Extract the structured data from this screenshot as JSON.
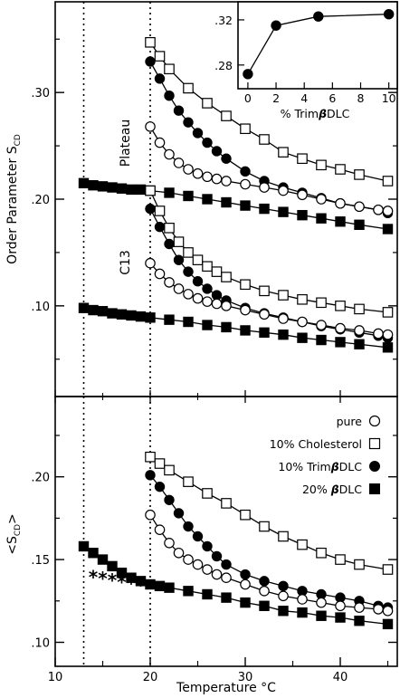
{
  "chart_data": [
    {
      "type": "line",
      "panel": "top",
      "ylabel": "Order Parameter S",
      "ylabel_sub": "CD",
      "xlim": [
        10,
        46
      ],
      "ylim": [
        0.015,
        0.385
      ],
      "x_ticks": [
        10,
        20,
        30,
        40
      ],
      "y_ticks": [
        0.1,
        0.2,
        0.3
      ],
      "y_tick_labels": [
        ".10",
        ".20",
        ".30"
      ],
      "annotations": [
        "Plateau",
        "C13"
      ],
      "vlines": [
        13,
        20
      ],
      "series": [
        {
          "group": "Plateau",
          "marker": "open-square",
          "x": [
            20,
            21,
            22,
            24,
            26,
            28,
            30,
            32,
            34,
            36,
            38,
            40,
            42,
            45
          ],
          "y": [
            0.347,
            0.334,
            0.322,
            0.304,
            0.29,
            0.278,
            0.266,
            0.256,
            0.244,
            0.238,
            0.232,
            0.228,
            0.223,
            0.217
          ]
        },
        {
          "group": "Plateau",
          "marker": "filled-circle",
          "x": [
            20,
            21,
            22,
            23,
            24,
            25,
            26,
            27,
            28,
            30,
            32,
            34,
            36,
            38,
            40,
            42,
            44,
            45
          ],
          "y": [
            0.329,
            0.313,
            0.297,
            0.283,
            0.272,
            0.262,
            0.253,
            0.245,
            0.238,
            0.226,
            0.217,
            0.211,
            0.206,
            0.201,
            0.196,
            0.193,
            0.19,
            0.187
          ]
        },
        {
          "group": "Plateau",
          "marker": "open-circle",
          "x": [
            20,
            21,
            22,
            23,
            24,
            25,
            26,
            27,
            28,
            30,
            32,
            34,
            36,
            38,
            40,
            42,
            44,
            45
          ],
          "y": [
            0.268,
            0.253,
            0.242,
            0.234,
            0.228,
            0.224,
            0.221,
            0.219,
            0.217,
            0.214,
            0.211,
            0.208,
            0.204,
            0.2,
            0.196,
            0.193,
            0.19,
            0.189
          ]
        },
        {
          "group": "Plateau",
          "marker": "filled-square",
          "x": [
            13,
            14,
            15,
            16,
            17,
            18,
            19,
            20,
            22,
            24,
            26,
            28,
            30,
            32,
            34,
            36,
            38,
            40,
            42,
            45
          ],
          "y": [
            0.215,
            0.213,
            0.212,
            0.211,
            0.21,
            0.209,
            0.209,
            0.208,
            0.206,
            0.203,
            0.2,
            0.197,
            0.194,
            0.191,
            0.188,
            0.185,
            0.182,
            0.179,
            0.176,
            0.172
          ]
        },
        {
          "group": "C13",
          "marker": "open-square",
          "x": [
            20,
            21,
            22,
            23,
            24,
            25,
            26,
            27,
            28,
            30,
            32,
            34,
            36,
            38,
            40,
            42,
            45
          ],
          "y": [
            0.208,
            0.189,
            0.173,
            0.16,
            0.15,
            0.143,
            0.137,
            0.132,
            0.127,
            0.12,
            0.114,
            0.11,
            0.106,
            0.103,
            0.1,
            0.097,
            0.094
          ]
        },
        {
          "group": "C13",
          "marker": "filled-circle",
          "x": [
            20,
            21,
            22,
            23,
            24,
            25,
            26,
            27,
            28,
            30,
            32,
            34,
            36,
            38,
            40,
            42,
            44,
            45
          ],
          "y": [
            0.191,
            0.174,
            0.158,
            0.143,
            0.132,
            0.123,
            0.116,
            0.11,
            0.105,
            0.098,
            0.093,
            0.089,
            0.085,
            0.081,
            0.078,
            0.075,
            0.072,
            0.07
          ]
        },
        {
          "group": "C13",
          "marker": "open-circle",
          "x": [
            20,
            21,
            22,
            23,
            24,
            25,
            26,
            27,
            28,
            30,
            32,
            34,
            36,
            38,
            40,
            42,
            44,
            45
          ],
          "y": [
            0.14,
            0.13,
            0.122,
            0.116,
            0.111,
            0.107,
            0.104,
            0.102,
            0.1,
            0.096,
            0.092,
            0.088,
            0.085,
            0.082,
            0.079,
            0.077,
            0.074,
            0.073
          ]
        },
        {
          "group": "C13",
          "marker": "filled-square",
          "x": [
            13,
            14,
            15,
            16,
            17,
            18,
            19,
            20,
            22,
            24,
            26,
            28,
            30,
            32,
            34,
            36,
            38,
            40,
            42,
            45
          ],
          "y": [
            0.098,
            0.096,
            0.095,
            0.093,
            0.092,
            0.091,
            0.09,
            0.089,
            0.087,
            0.085,
            0.082,
            0.08,
            0.077,
            0.075,
            0.073,
            0.07,
            0.068,
            0.066,
            0.064,
            0.061
          ]
        }
      ]
    },
    {
      "type": "line",
      "panel": "inset",
      "xlabel": "% Trim",
      "xlabel_beta": "β",
      "xlabel_tail": "DLC",
      "xlim": [
        -0.7,
        10.6
      ],
      "ylim": [
        0.259,
        0.336
      ],
      "x_ticks": [
        0,
        2,
        4,
        6,
        8,
        10
      ],
      "y_ticks": [
        0.28,
        0.32
      ],
      "y_tick_labels": [
        ".28",
        ".32"
      ],
      "series": [
        {
          "marker": "filled-circle",
          "x": [
            0,
            2,
            5,
            10
          ],
          "y": [
            0.272,
            0.315,
            0.323,
            0.325
          ]
        }
      ]
    },
    {
      "type": "line",
      "panel": "bottom",
      "ylabel": "<S",
      "ylabel_sub": "CD",
      "ylabel_tail": ">",
      "xlabel": "Temperature °C",
      "xlim": [
        10,
        46
      ],
      "ylim": [
        0.0855,
        0.2485
      ],
      "x_ticks": [
        10,
        20,
        30,
        40
      ],
      "y_ticks": [
        0.1,
        0.15,
        0.2
      ],
      "y_tick_labels": [
        ".10",
        ".15",
        ".20"
      ],
      "vlines": [
        13,
        20
      ],
      "legend_position": "top-right",
      "legend": [
        {
          "label": "pure",
          "marker": "open-circle"
        },
        {
          "label": "10% Cholesterol",
          "marker": "open-square"
        },
        {
          "label": "10% Trim",
          "beta": "β",
          "tail": "DLC",
          "marker": "filled-circle"
        },
        {
          "label": "20% ",
          "beta": "β",
          "tail": "DLC",
          "marker": "filled-square"
        }
      ],
      "series": [
        {
          "name": "10% Cholesterol",
          "marker": "open-square",
          "x": [
            20,
            21,
            22,
            24,
            26,
            28,
            30,
            32,
            34,
            36,
            38,
            40,
            42,
            45
          ],
          "y": [
            0.212,
            0.208,
            0.204,
            0.197,
            0.19,
            0.184,
            0.177,
            0.17,
            0.164,
            0.159,
            0.154,
            0.15,
            0.147,
            0.144
          ]
        },
        {
          "name": "10% TrimβDLC",
          "marker": "filled-circle",
          "x": [
            20,
            21,
            22,
            23,
            24,
            25,
            26,
            27,
            28,
            30,
            32,
            34,
            36,
            38,
            40,
            42,
            44,
            45
          ],
          "y": [
            0.201,
            0.194,
            0.186,
            0.178,
            0.17,
            0.164,
            0.158,
            0.152,
            0.147,
            0.141,
            0.137,
            0.134,
            0.131,
            0.129,
            0.127,
            0.125,
            0.122,
            0.121
          ]
        },
        {
          "name": "pure",
          "marker": "open-circle",
          "x": [
            20,
            21,
            22,
            23,
            24,
            25,
            26,
            27,
            28,
            30,
            32,
            34,
            36,
            38,
            40,
            42,
            44,
            45
          ],
          "y": [
            0.177,
            0.168,
            0.16,
            0.154,
            0.15,
            0.147,
            0.144,
            0.141,
            0.139,
            0.135,
            0.131,
            0.128,
            0.126,
            0.124,
            0.122,
            0.121,
            0.12,
            0.119
          ]
        },
        {
          "name": "20% βDLC",
          "marker": "filled-square",
          "x": [
            13,
            14,
            15,
            16,
            17,
            18,
            19,
            20,
            21,
            22,
            24,
            26,
            28,
            30,
            32,
            34,
            36,
            38,
            40,
            42,
            45
          ],
          "y": [
            0.158,
            0.154,
            0.15,
            0.146,
            0.142,
            0.139,
            0.137,
            0.135,
            0.134,
            0.133,
            0.131,
            0.129,
            0.127,
            0.124,
            0.122,
            0.119,
            0.118,
            0.116,
            0.115,
            0.113,
            0.111
          ]
        },
        {
          "marker": "asterisk",
          "x": [
            14,
            15,
            16,
            17,
            18,
            19
          ],
          "y": [
            0.14,
            0.139,
            0.138,
            0.137,
            0.136,
            0.135
          ]
        }
      ]
    }
  ]
}
